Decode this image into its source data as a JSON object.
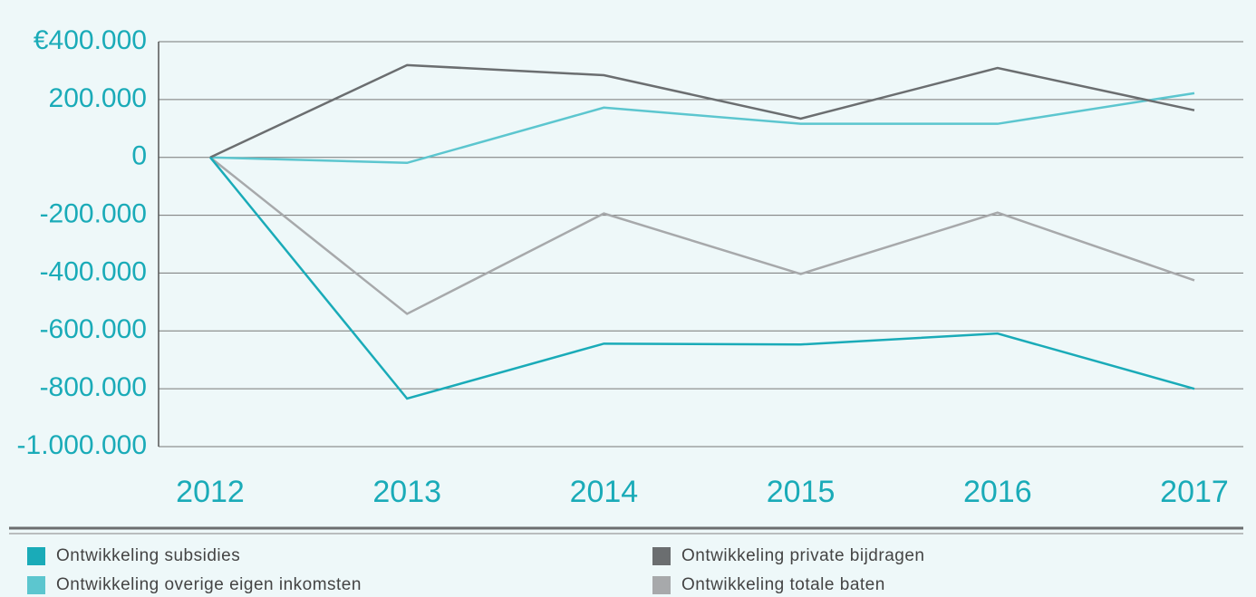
{
  "chart_data": {
    "type": "line",
    "categories": [
      "2012",
      "2013",
      "2014",
      "2015",
      "2016",
      "2017"
    ],
    "series": [
      {
        "name": "Ontwikkeling subsidies",
        "color": "#1aabb8",
        "values": [
          0,
          -834000,
          -644000,
          -647000,
          -609000,
          -800000
        ]
      },
      {
        "name": "Ontwikkeling overige eigen inkomsten",
        "color": "#5cc6cf",
        "values": [
          0,
          -19000,
          172000,
          116000,
          116000,
          222000
        ]
      },
      {
        "name": "Ontwikkeling private bijdragen",
        "color": "#6b6e70",
        "values": [
          0,
          319000,
          284000,
          134000,
          309000,
          163000
        ]
      },
      {
        "name": "Ontwikkeling totale baten",
        "color": "#a7a9ab",
        "values": [
          0,
          -541000,
          -194000,
          -403000,
          -191000,
          -425000
        ]
      }
    ],
    "ylim": [
      -1000000,
      400000
    ],
    "yticks": [
      {
        "value": 400000,
        "label": "€400.000"
      },
      {
        "value": 200000,
        "label": "200.000"
      },
      0,
      {
        "value": -200000,
        "label": "-200.000"
      },
      {
        "value": -400000,
        "label": "-400.000"
      },
      {
        "value": -600000,
        "label": "-600.000"
      },
      {
        "value": -800000,
        "label": "-800.000"
      },
      {
        "value": -1000000,
        "label": "-1.000.000"
      }
    ],
    "grid": true
  }
}
